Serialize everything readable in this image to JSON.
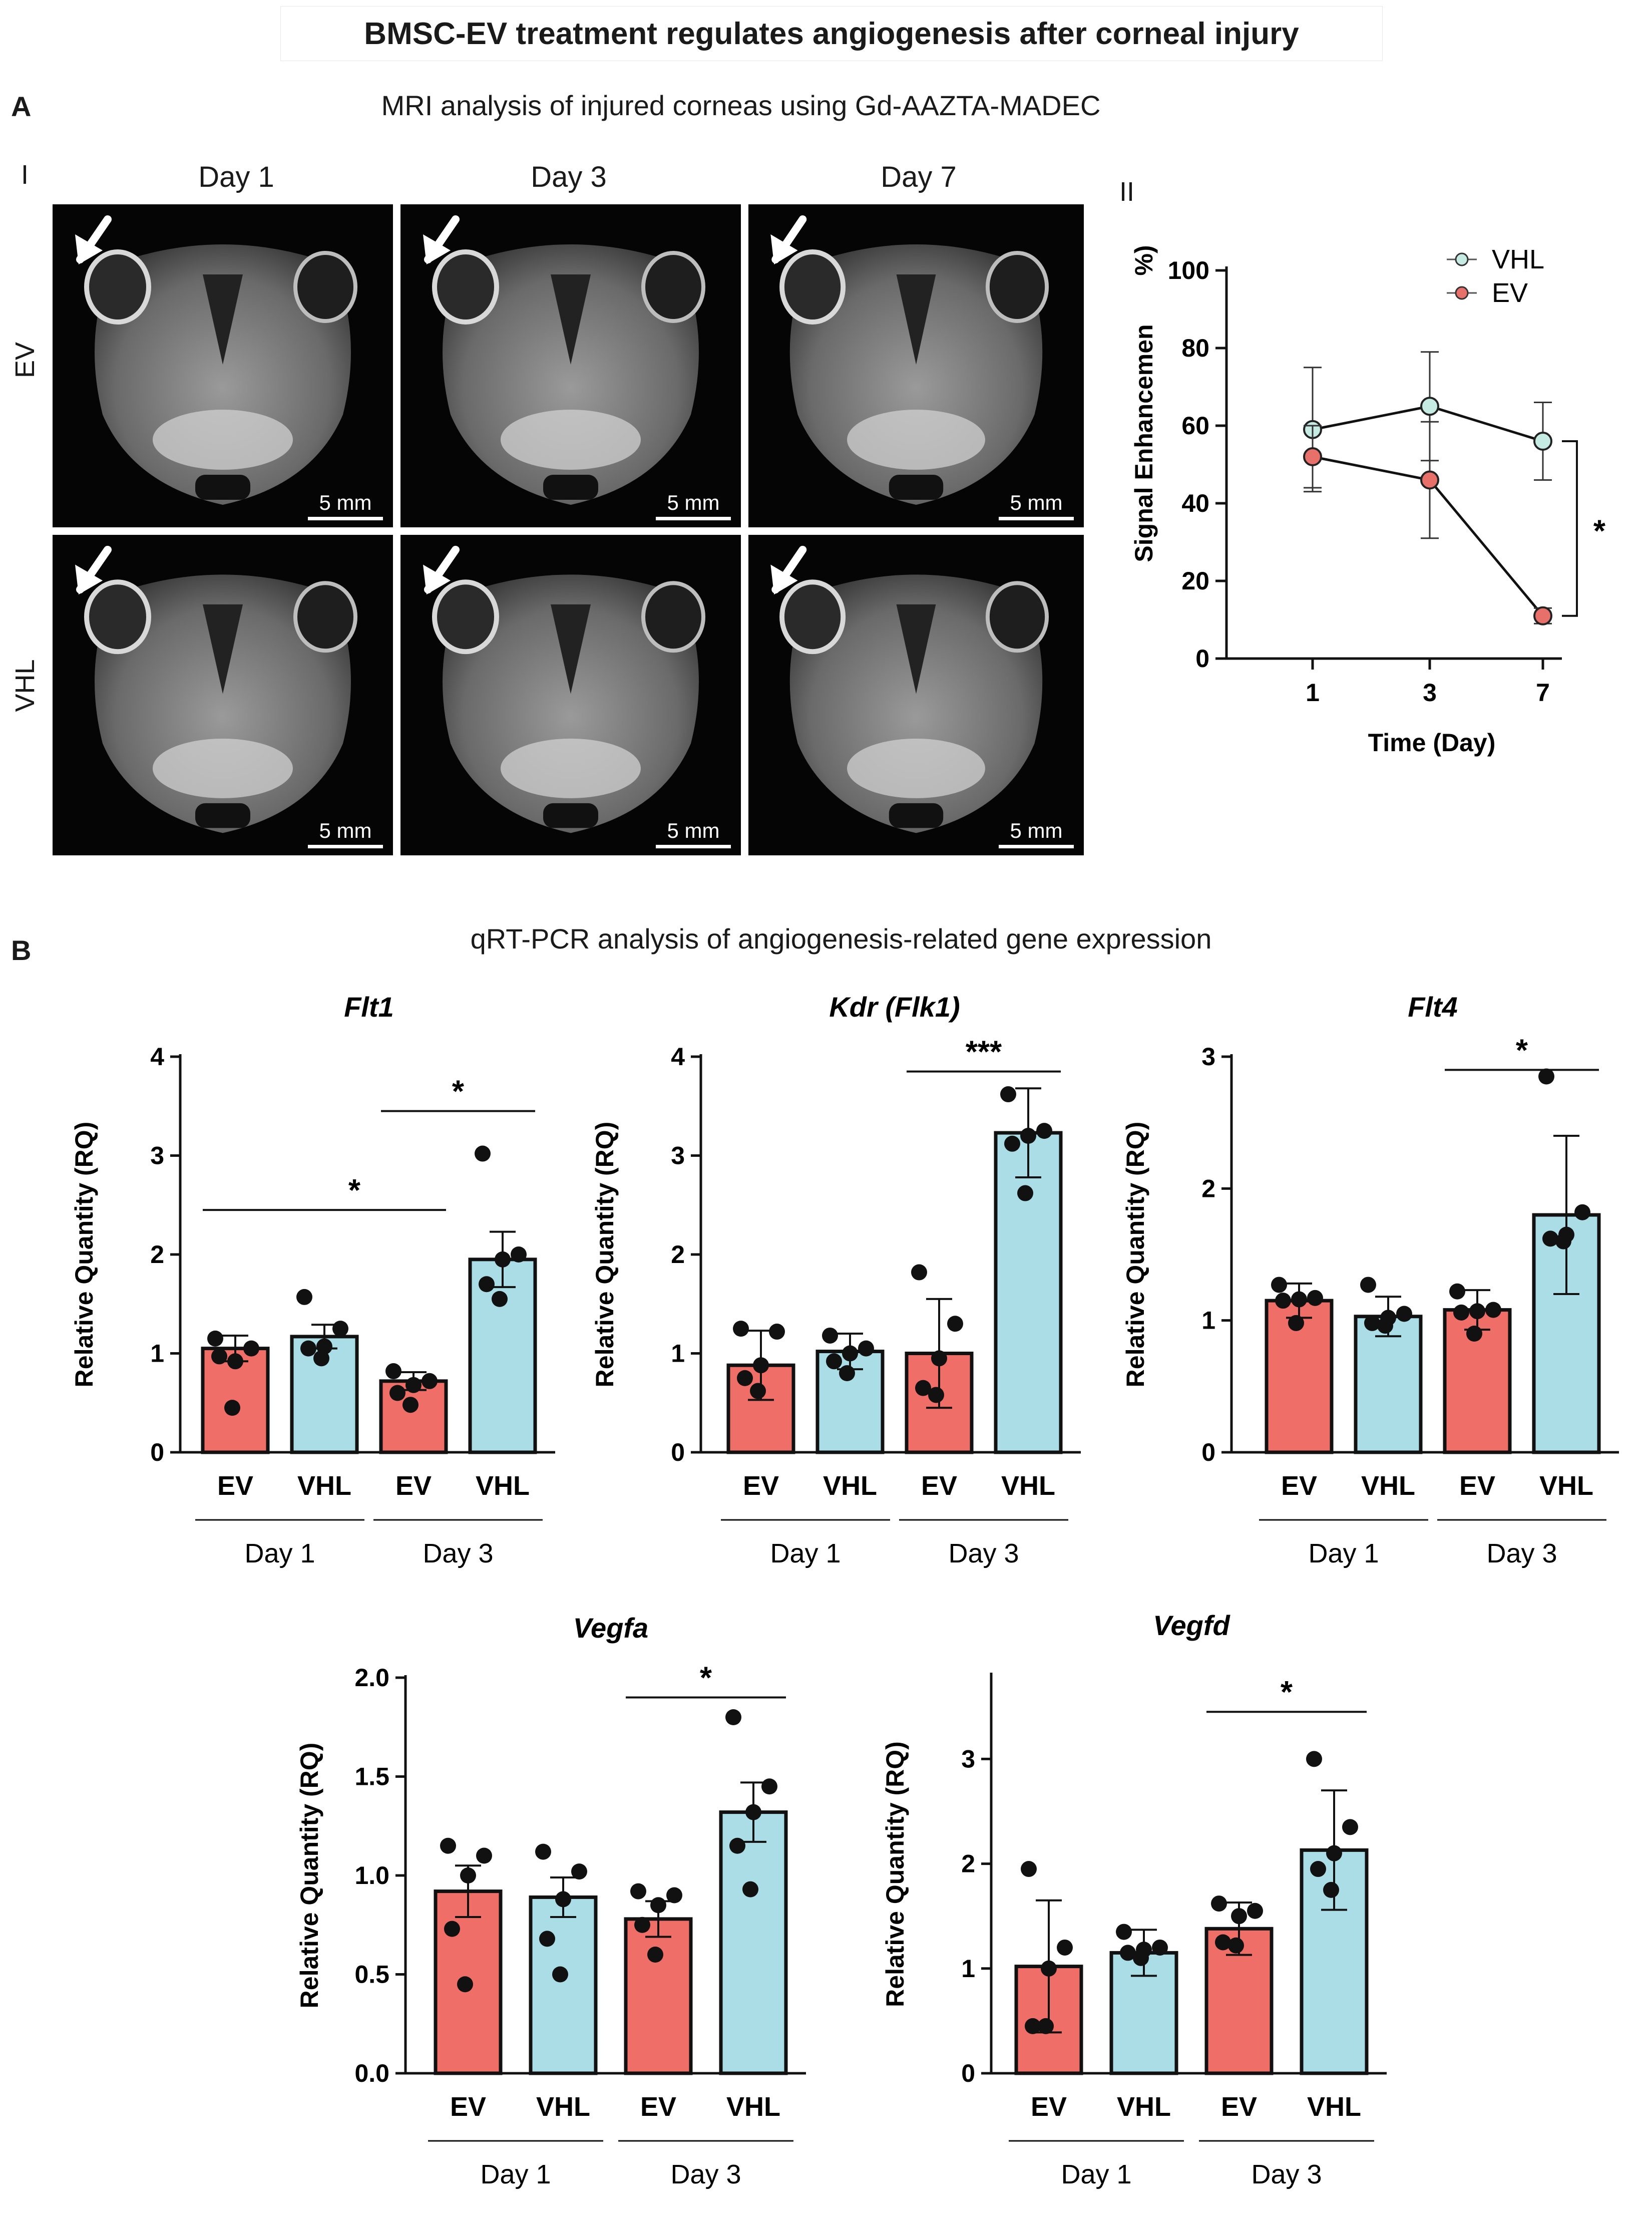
{
  "figure_title": "BMSC-EV treatment regulates angiogenesis after corneal injury",
  "panel_a": {
    "letter": "A",
    "subtitle": "MRI analysis of injured corneas using Gd-AAZTA-MADEC",
    "sub_i": "I",
    "sub_ii": "II",
    "days": [
      "Day 1",
      "Day 3",
      "Day 7"
    ],
    "rows": [
      "EV",
      "VHL"
    ],
    "scale_label": "5 mm"
  },
  "panel_b": {
    "letter": "B",
    "subtitle": "qRT-PCR analysis of angiogenesis-related gene expression"
  },
  "colors": {
    "ev": "#ef6e67",
    "vhl": "#abdde6",
    "ev_line": "#e8706a",
    "vhl_line": "#c6ebe3",
    "text": "#1a1a1a"
  },
  "chart_data": [
    {
      "id": "mri",
      "type": "line",
      "title": "",
      "xlabel": "Time (Day)",
      "ylabel": "Signal Enhancement (%)",
      "ylabel_visible": "Signal Enhancemen",
      "ylabel_tail": "%)",
      "categories": [
        "1",
        "3",
        "7"
      ],
      "ylim": [
        0,
        100
      ],
      "yticks": [
        "0",
        "20",
        "40",
        "60",
        "80",
        "100"
      ],
      "series": [
        {
          "name": "VHL",
          "values": [
            59,
            65,
            56
          ],
          "errors": [
            16,
            14,
            10
          ]
        },
        {
          "name": "EV",
          "values": [
            52,
            46,
            11
          ],
          "errors": [
            8,
            15,
            2
          ]
        }
      ],
      "significance": "*",
      "significance_at": "Day 7",
      "legend": "top-right"
    },
    {
      "id": "flt1",
      "type": "bar",
      "title": "Flt1",
      "ylabel": "Relative Quantity (RQ)",
      "categories": [
        "EV",
        "VHL",
        "EV",
        "VHL"
      ],
      "groups": [
        "Day 1",
        "Day 3"
      ],
      "ylim": [
        0,
        4
      ],
      "yticks": [
        "0",
        "1",
        "2",
        "3",
        "4"
      ],
      "values": [
        1.05,
        1.17,
        0.72,
        1.95
      ],
      "errors": [
        0.13,
        0.12,
        0.09,
        0.28
      ],
      "points": [
        [
          1.15,
          1.05,
          0.92,
          0.97,
          0.45
        ],
        [
          1.57,
          1.25,
          1.07,
          1.05,
          0.95
        ],
        [
          0.82,
          0.72,
          0.68,
          0.6,
          0.48
        ],
        [
          3.02,
          2.0,
          1.95,
          1.7,
          1.55
        ]
      ],
      "significance": [
        {
          "from": 0,
          "to": 2,
          "label": "*",
          "y": 2.45
        },
        {
          "from": 2,
          "to": 3,
          "label": "*",
          "y": 3.45
        }
      ]
    },
    {
      "id": "kdr",
      "type": "bar",
      "title": "Kdr (Flk1)",
      "ylabel": "Relative Quantity (RQ)",
      "categories": [
        "EV",
        "VHL",
        "EV",
        "VHL"
      ],
      "groups": [
        "Day 1",
        "Day 3"
      ],
      "ylim": [
        0,
        4
      ],
      "yticks": [
        "0",
        "1",
        "2",
        "3",
        "4"
      ],
      "values": [
        0.88,
        1.02,
        1.0,
        3.23
      ],
      "errors": [
        0.35,
        0.18,
        0.55,
        0.45
      ],
      "points": [
        [
          1.25,
          1.22,
          0.88,
          0.75,
          0.62
        ],
        [
          1.18,
          1.05,
          1.0,
          0.92,
          0.8
        ],
        [
          1.82,
          1.3,
          0.95,
          0.65,
          0.58
        ],
        [
          3.62,
          3.25,
          3.2,
          3.12,
          2.62
        ]
      ],
      "significance": [
        {
          "from": 2,
          "to": 3,
          "label": "***",
          "y": 3.85
        }
      ]
    },
    {
      "id": "flt4",
      "type": "bar",
      "title": "Flt4",
      "ylabel": "Relative Quantity (RQ)",
      "categories": [
        "EV",
        "VHL",
        "EV",
        "VHL"
      ],
      "groups": [
        "Day 1",
        "Day 3"
      ],
      "ylim": [
        0,
        3
      ],
      "yticks": [
        "0",
        "1",
        "2",
        "3"
      ],
      "values": [
        1.15,
        1.03,
        1.08,
        1.8
      ],
      "errors": [
        0.13,
        0.15,
        0.15,
        0.6
      ],
      "points": [
        [
          1.27,
          1.17,
          1.16,
          1.15,
          0.98
        ],
        [
          1.27,
          1.05,
          1.02,
          0.98,
          0.96
        ],
        [
          1.22,
          1.08,
          1.07,
          1.06,
          0.9
        ],
        [
          2.85,
          1.82,
          1.65,
          1.62,
          1.6
        ]
      ],
      "significance": [
        {
          "from": 2,
          "to": 3,
          "label": "*",
          "y": 2.9
        }
      ]
    },
    {
      "id": "vegfa",
      "type": "bar",
      "title": "Vegfa",
      "ylabel": "Relative Quantity (RQ)",
      "categories": [
        "EV",
        "VHL",
        "EV",
        "VHL"
      ],
      "groups": [
        "Day 1",
        "Day 3"
      ],
      "ylim": [
        0,
        2
      ],
      "yticks": [
        "0.0",
        "0.5",
        "1.0",
        "1.5",
        "2.0"
      ],
      "values": [
        0.92,
        0.89,
        0.78,
        1.32
      ],
      "errors": [
        0.13,
        0.1,
        0.09,
        0.15
      ],
      "points": [
        [
          1.15,
          1.1,
          1.0,
          0.73,
          0.45
        ],
        [
          1.12,
          1.02,
          0.88,
          0.68,
          0.5
        ],
        [
          0.92,
          0.9,
          0.85,
          0.75,
          0.6
        ],
        [
          1.8,
          1.45,
          1.32,
          1.15,
          0.93
        ]
      ],
      "significance": [
        {
          "from": 2,
          "to": 3,
          "label": "*",
          "y": 1.9
        }
      ]
    },
    {
      "id": "vegfd",
      "type": "bar",
      "title": "Vegfd",
      "ylabel": "Relative Quantity (RQ)",
      "categories": [
        "EV",
        "VHL",
        "EV",
        "VHL"
      ],
      "groups": [
        "Day 1",
        "Day 3"
      ],
      "ylim": [
        0,
        3.8
      ],
      "yticks": [
        "0",
        "1",
        "2",
        "3"
      ],
      "values": [
        1.02,
        1.15,
        1.38,
        2.13
      ],
      "errors": [
        0.63,
        0.22,
        0.25,
        0.57
      ],
      "points": [
        [
          1.95,
          1.2,
          1.0,
          0.45,
          0.45
        ],
        [
          1.35,
          1.2,
          1.18,
          1.15,
          1.1
        ],
        [
          1.62,
          1.55,
          1.5,
          1.25,
          1.22
        ],
        [
          3.0,
          2.35,
          2.1,
          1.95,
          1.75
        ]
      ],
      "significance": [
        {
          "from": 2,
          "to": 3,
          "label": "*",
          "y": 3.45
        }
      ]
    }
  ]
}
